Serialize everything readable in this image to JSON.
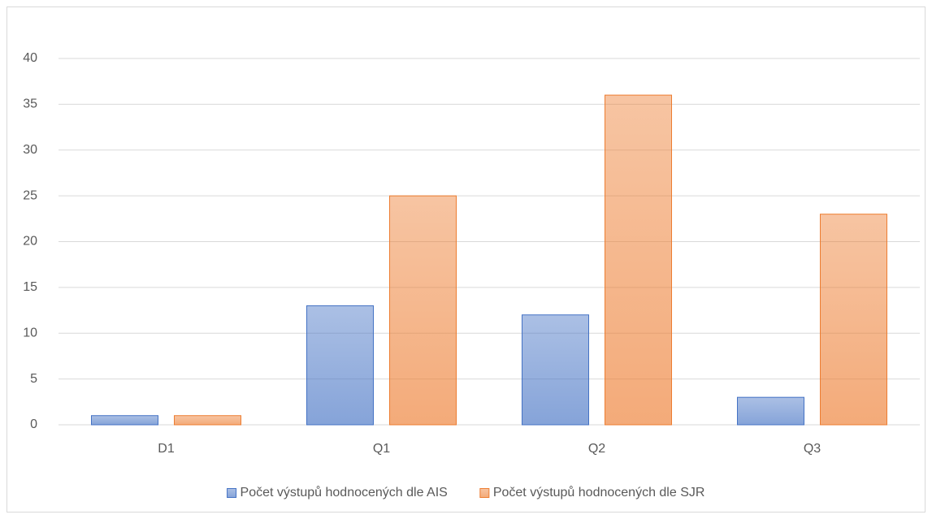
{
  "chart_data": {
    "type": "bar",
    "categories": [
      "D1",
      "Q1",
      "Q2",
      "Q3"
    ],
    "series": [
      {
        "name": "Počet výstupů hodnocených dle AIS",
        "color": "#4472c4",
        "values": [
          1,
          13,
          12,
          3
        ]
      },
      {
        "name": "Počet výstupů hodnocených dle SJR",
        "color": "#ed7d31",
        "values": [
          1,
          25,
          36,
          23
        ]
      }
    ],
    "ylim": [
      0,
      40
    ],
    "yticks": [
      0,
      5,
      10,
      15,
      20,
      25,
      30,
      35,
      40
    ],
    "grid": true,
    "legend": "bottom"
  }
}
